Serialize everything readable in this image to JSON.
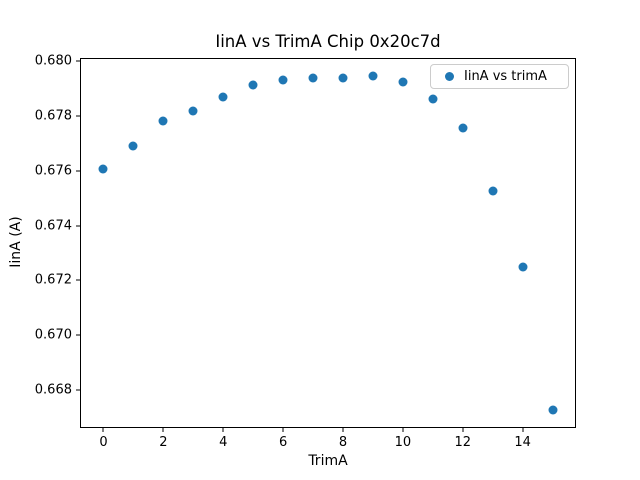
{
  "figure": {
    "kind": "matplotlib-style scatter figure",
    "background": "#ffffff"
  },
  "chart_data": {
    "type": "scatter",
    "title": "IinA vs TrimA Chip 0x20c7d",
    "xlabel": "TrimA",
    "ylabel": "IinA (A)",
    "legend": {
      "label": "IinA vs trimA",
      "position": "upper right"
    },
    "marker_color": "#1f77b4",
    "axes_color": "#000000",
    "legend_border_color": "#cccccc",
    "grid": false,
    "xlim": [
      -0.75,
      15.75
    ],
    "ylim": [
      0.66666,
      0.6801
    ],
    "xticks": [
      0,
      2,
      4,
      6,
      8,
      10,
      12,
      14
    ],
    "yticks": [
      0.668,
      0.67,
      0.672,
      0.674,
      0.676,
      0.678,
      0.68
    ],
    "ytick_decimals": 3,
    "x": [
      0,
      1,
      2,
      3,
      4,
      5,
      6,
      7,
      8,
      9,
      10,
      11,
      12,
      13,
      14,
      15
    ],
    "y": [
      0.67605,
      0.67692,
      0.67782,
      0.67818,
      0.67869,
      0.67912,
      0.67932,
      0.67938,
      0.67937,
      0.67946,
      0.67925,
      0.67861,
      0.67756,
      0.67527,
      0.6725,
      0.66727
    ]
  }
}
